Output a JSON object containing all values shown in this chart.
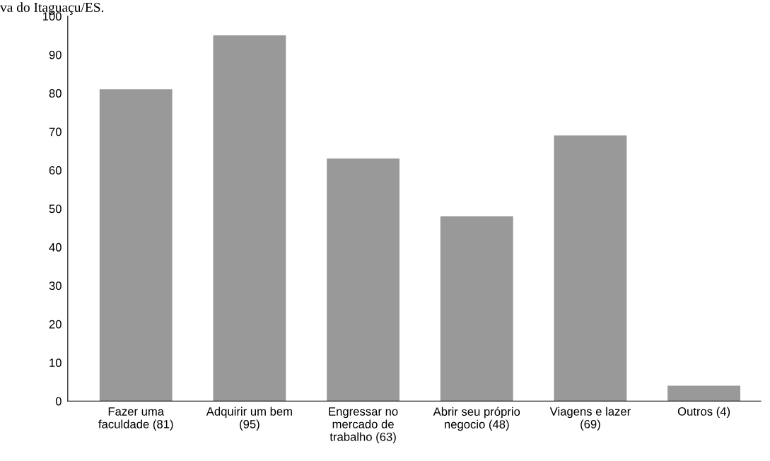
{
  "chart_data": {
    "type": "bar",
    "annotations": [
      "va do Itaguaçu/ES."
    ],
    "categories": [
      "Fazer uma\nfaculdade (81)",
      "Adquirir um bem\n(95)",
      "Engressar no\nmercado de\ntrabalho (63)",
      "Abrir seu próprio\nnegocio (48)",
      "Viagens e lazer\n(69)",
      "Outros (4)"
    ],
    "values": [
      81,
      95,
      63,
      48,
      69,
      4
    ],
    "color": "#999999",
    "ylim": [
      0,
      100
    ],
    "yticks": [
      0,
      10,
      20,
      30,
      40,
      50,
      60,
      70,
      80,
      90,
      100
    ],
    "grid": false,
    "legend": false
  }
}
